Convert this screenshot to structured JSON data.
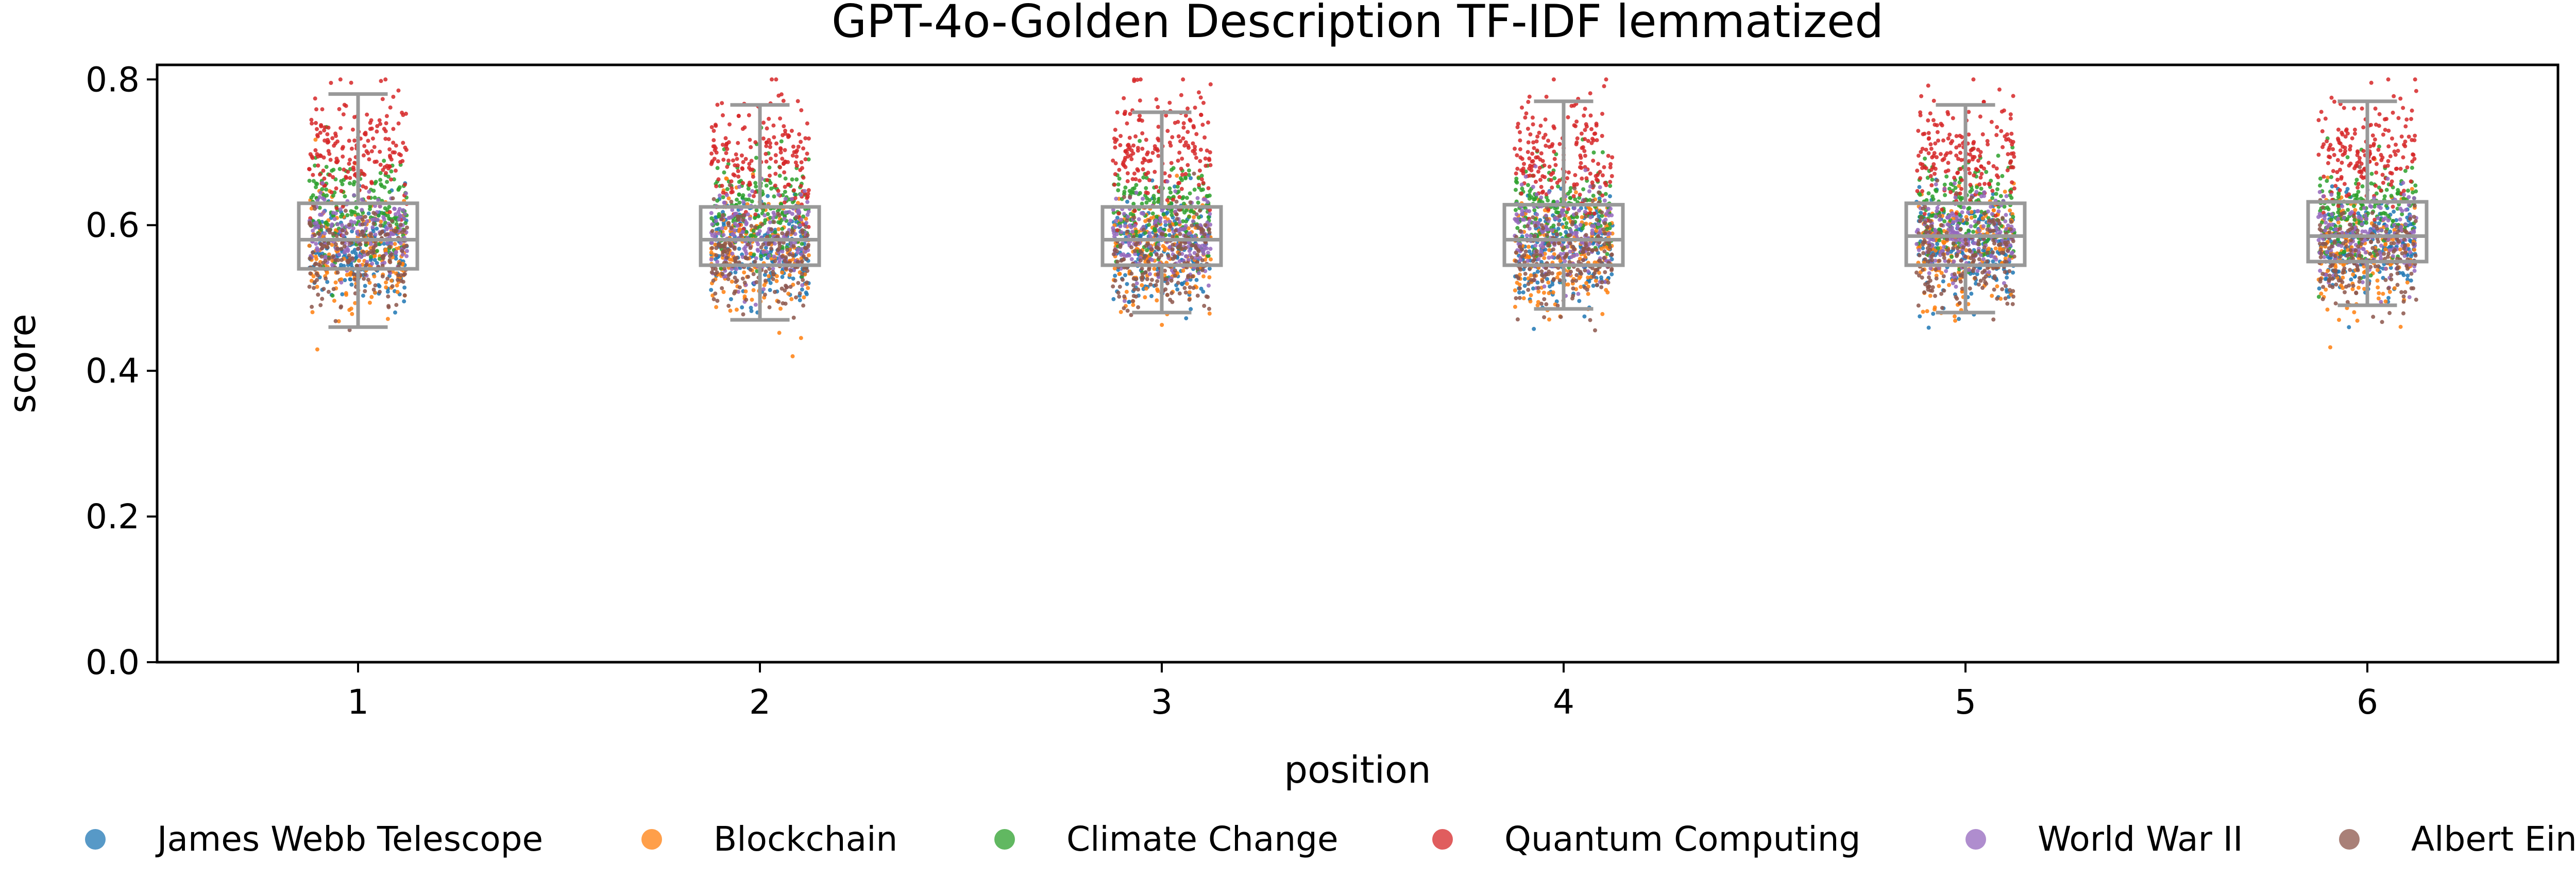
{
  "chart_data": {
    "type": "scatter",
    "subtype": "box-strip",
    "title": "GPT-4o-Golden Description TF-IDF lemmatized",
    "xlabel": "position",
    "ylabel": "score",
    "categories": [
      "1",
      "2",
      "3",
      "4",
      "5",
      "6"
    ],
    "ylim": [
      0.0,
      0.82
    ],
    "yticks": [
      "0.0",
      "0.2",
      "0.4",
      "0.6",
      "0.8"
    ],
    "ytick_values": [
      0.0,
      0.2,
      0.4,
      0.6,
      0.8
    ],
    "grid": false,
    "legend_placement": "bottom",
    "box_color": "#999999",
    "boxes": [
      {
        "position": "1",
        "whisker_low": 0.46,
        "q1": 0.54,
        "median": 0.58,
        "q3": 0.63,
        "whisker_high": 0.78
      },
      {
        "position": "2",
        "whisker_low": 0.47,
        "q1": 0.545,
        "median": 0.58,
        "q3": 0.625,
        "whisker_high": 0.765
      },
      {
        "position": "3",
        "whisker_low": 0.48,
        "q1": 0.545,
        "median": 0.58,
        "q3": 0.625,
        "whisker_high": 0.755
      },
      {
        "position": "4",
        "whisker_low": 0.485,
        "q1": 0.545,
        "median": 0.58,
        "q3": 0.628,
        "whisker_high": 0.77
      },
      {
        "position": "5",
        "whisker_low": 0.48,
        "q1": 0.545,
        "median": 0.585,
        "q3": 0.63,
        "whisker_high": 0.765
      },
      {
        "position": "6",
        "whisker_low": 0.49,
        "q1": 0.55,
        "median": 0.585,
        "q3": 0.632,
        "whisker_high": 0.77
      }
    ],
    "series": [
      {
        "name": "James Webb Telescope",
        "color": "#1f77b4",
        "center": 0.565,
        "spread": 0.035
      },
      {
        "name": "Blockchain",
        "color": "#ff7f0e",
        "center": 0.565,
        "spread": 0.04
      },
      {
        "name": "Climate Change",
        "color": "#2ca02c",
        "center": 0.62,
        "spread": 0.035
      },
      {
        "name": "Quantum Computing",
        "color": "#d62728",
        "center": 0.7,
        "spread": 0.04
      },
      {
        "name": "World War II",
        "color": "#9467bd",
        "center": 0.585,
        "spread": 0.03
      },
      {
        "name": "Albert Einstein",
        "color": "#8c564b",
        "center": 0.555,
        "spread": 0.035
      }
    ]
  }
}
